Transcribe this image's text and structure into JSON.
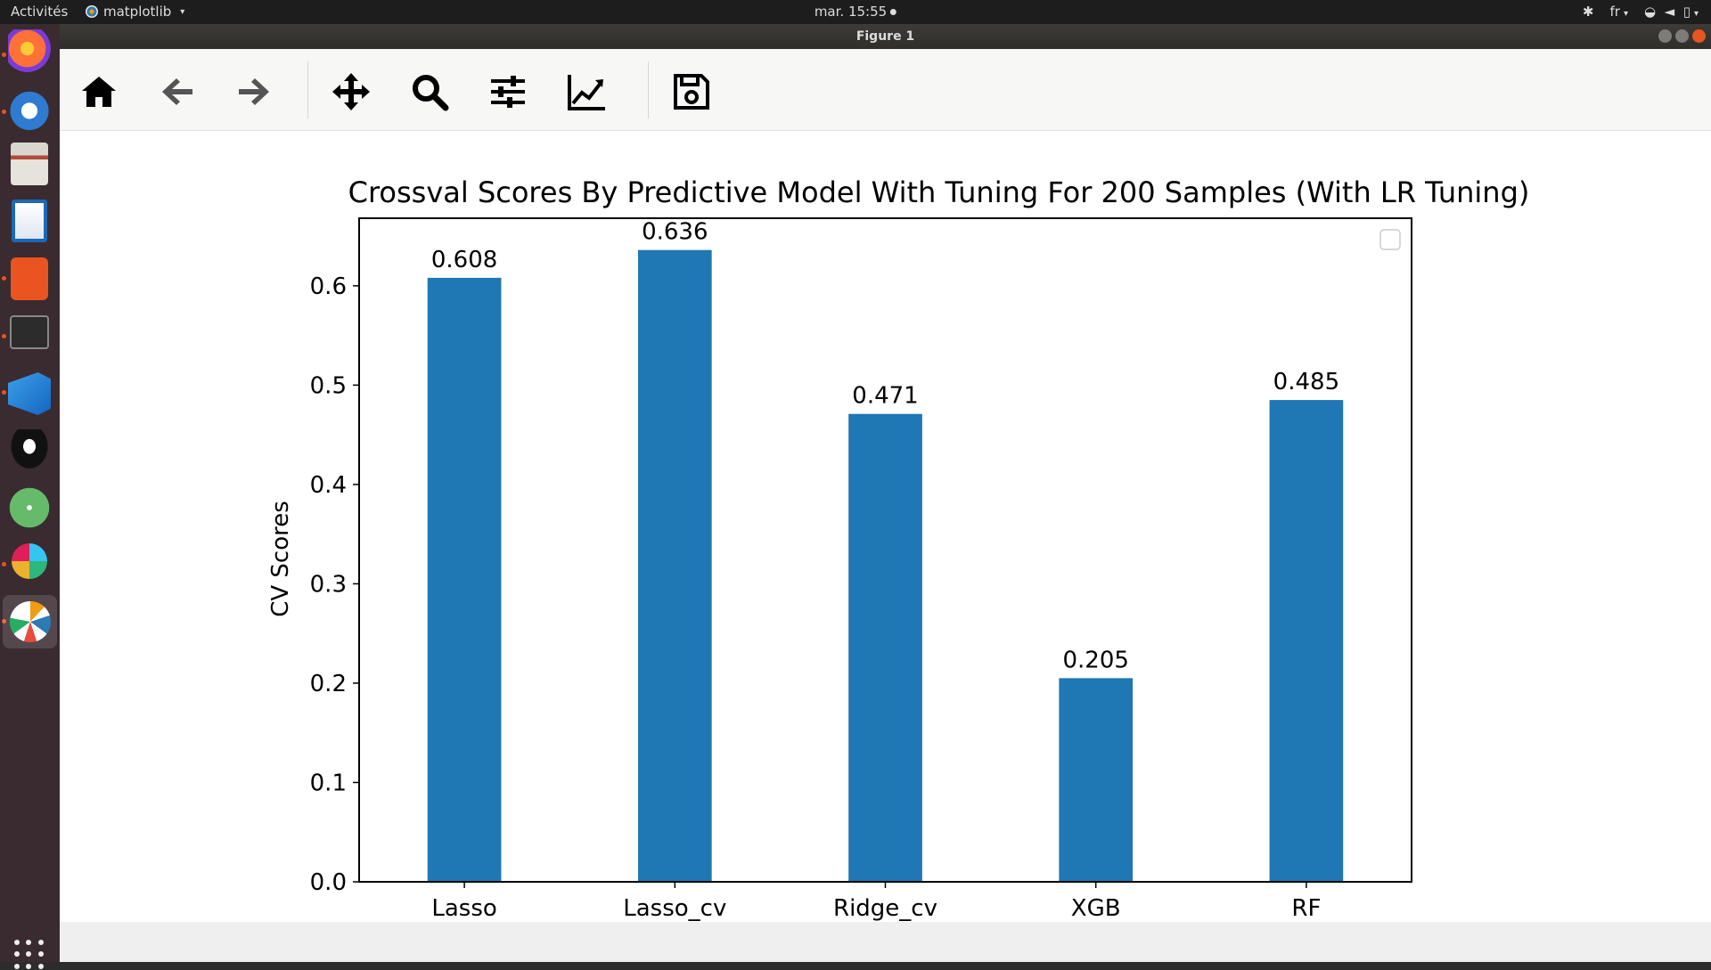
{
  "topbar": {
    "activities": "Activités",
    "app_name": "matplotlib",
    "clock": "mar. 15:55",
    "lang": "fr"
  },
  "window": {
    "title": "Figure 1"
  },
  "toolbar": {
    "buttons": [
      "home-icon",
      "back-arrow-icon",
      "forward-arrow-icon",
      "move-icon",
      "zoom-icon",
      "configure-subplots-icon",
      "edit-axis-icon",
      "save-icon"
    ]
  },
  "dock": {
    "apps": [
      "firefox",
      "thunderbird",
      "files",
      "writer",
      "software",
      "terminal",
      "vscode",
      "inkscape",
      "atom",
      "slack",
      "matplotlib"
    ]
  },
  "chart_data": {
    "type": "bar",
    "title": "Crossval Scores By Predictive Model With Tuning For 200 Samples (With LR Tuning)",
    "xlabel": "",
    "ylabel": "CV Scores",
    "categories": [
      "Lasso",
      "Lasso_cv",
      "Ridge_cv",
      "XGB",
      "RF"
    ],
    "values": [
      0.608,
      0.636,
      0.471,
      0.205,
      0.485
    ],
    "value_labels": [
      "0.608",
      "0.636",
      "0.471",
      "0.205",
      "0.485"
    ],
    "ylim": [
      0,
      0.668
    ],
    "yticks": [
      0.0,
      0.1,
      0.2,
      0.3,
      0.4,
      0.5,
      0.6
    ],
    "ytick_labels": [
      "0.0",
      "0.1",
      "0.2",
      "0.3",
      "0.4",
      "0.5",
      "0.6"
    ],
    "bar_color": "#1f77b4",
    "legend": "top-right, empty",
    "grid": false
  }
}
